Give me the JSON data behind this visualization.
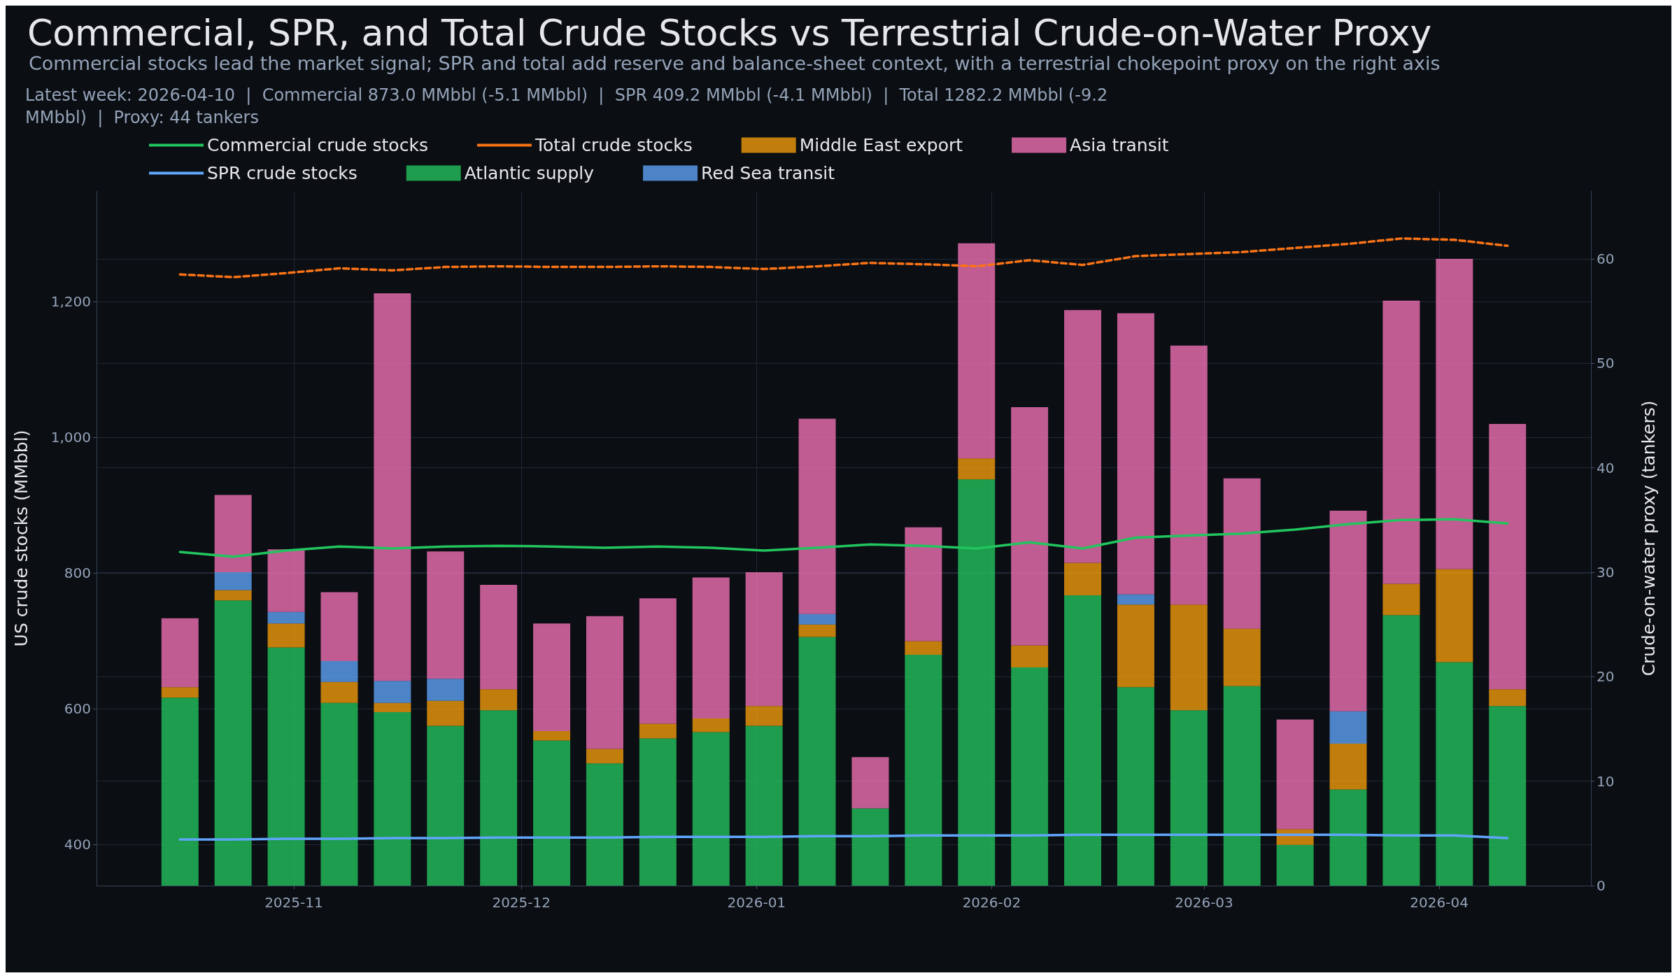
{
  "chart_data": {
    "type": "bar",
    "title": "Commercial, SPR, and Total Crude Stocks vs Terrestrial Crude-on-Water Proxy",
    "subtitle": "Commercial stocks lead the market signal; SPR and total add reserve and balance-sheet context, with a terrestrial chokepoint proxy on the right axis",
    "annotations": [
      "Latest week: 2026-04-10  |  Commercial 873.0 MMbbl (-5.1 MMbbl)  |  SPR 409.2 MMbbl (-4.1 MMbbl)  |  Total 1282.2 MMbbl (-9.2 MMbbl)  |  Proxy: 44 tankers"
    ],
    "ylabel": "US crude stocks (MMbbl)",
    "y2label": "Crude-on-water proxy (tankers)",
    "x": [
      "2025-10-17",
      "2025-10-24",
      "2025-10-31",
      "2025-11-07",
      "2025-11-14",
      "2025-11-21",
      "2025-11-28",
      "2025-12-05",
      "2025-12-12",
      "2025-12-19",
      "2025-12-26",
      "2026-01-02",
      "2026-01-09",
      "2026-01-16",
      "2026-01-23",
      "2026-01-30",
      "2026-02-06",
      "2026-02-13",
      "2026-02-20",
      "2026-02-27",
      "2026-03-06",
      "2026-03-13",
      "2026-03-20",
      "2026-03-27",
      "2026-04-03",
      "2026-04-10"
    ],
    "xlim": [
      "2025-10-06",
      "2026-04-21"
    ],
    "xticks": [
      {
        "value": "2025-11-01",
        "label": "2025-11"
      },
      {
        "value": "2025-12-01",
        "label": "2025-12"
      },
      {
        "value": "2026-01-01",
        "label": "2026-01"
      },
      {
        "value": "2026-02-01",
        "label": "2026-02"
      },
      {
        "value": "2026-03-01",
        "label": "2026-03"
      },
      {
        "value": "2026-04-01",
        "label": "2026-04"
      }
    ],
    "ylim": [
      339,
      1363
    ],
    "yticks": [
      {
        "value": 400,
        "label": "400"
      },
      {
        "value": 600,
        "label": "600"
      },
      {
        "value": 800,
        "label": "800"
      },
      {
        "value": 1000,
        "label": "1,000"
      },
      {
        "value": 1200,
        "label": "1,200"
      }
    ],
    "y2lim": [
      0,
      66.5
    ],
    "y2ticks": [
      0,
      10,
      20,
      30,
      40,
      50,
      60
    ],
    "stacked": true,
    "grid": true,
    "legend": "top left",
    "series": [
      {
        "name": "Commercial crude stocks",
        "type": "line",
        "axis": "y",
        "color": "#22c55e",
        "line_style": "solid",
        "values": [
          831,
          824,
          833,
          839,
          836,
          839,
          840,
          839,
          837,
          839,
          837,
          833,
          837,
          842,
          840,
          836,
          845,
          836,
          852,
          855,
          858,
          864,
          872,
          878,
          879,
          873.0
        ]
      },
      {
        "name": "SPR crude stocks",
        "type": "line",
        "axis": "y",
        "color": "#60a5fa",
        "line_style": "solid",
        "values": [
          407,
          407,
          408,
          408,
          409,
          409,
          410,
          410,
          410,
          411,
          411,
          411,
          412,
          412,
          413,
          413,
          413,
          414,
          414,
          414,
          414,
          414,
          414,
          413,
          413,
          409.2
        ]
      },
      {
        "name": "Total crude stocks",
        "type": "line",
        "axis": "y",
        "color": "#f97316",
        "line_style": "dashed",
        "values": [
          1240,
          1236,
          1242,
          1249,
          1246,
          1251,
          1252,
          1251,
          1251,
          1252,
          1251,
          1248,
          1252,
          1257,
          1255,
          1252,
          1261,
          1254,
          1267,
          1270,
          1273,
          1279,
          1285,
          1293,
          1291,
          1282.2
        ]
      },
      {
        "name": "Atlantic supply",
        "axis": "y2",
        "color": "#22c55e",
        "values": [
          18,
          27.3,
          22.8,
          17.5,
          16.6,
          15.3,
          16.8,
          13.9,
          11.7,
          14.1,
          14.7,
          15.3,
          23.8,
          7.4,
          22.1,
          38.9,
          20.9,
          27.8,
          19,
          16.8,
          19.1,
          3.9,
          9.2,
          25.9,
          21.4,
          17.2
        ]
      },
      {
        "name": "Middle East export",
        "axis": "y2",
        "color": "#f59e0b",
        "values": [
          1,
          1,
          2.3,
          2,
          0.9,
          2.4,
          2,
          0.9,
          1.4,
          1.4,
          1.3,
          1.9,
          1.2,
          0,
          1.3,
          2,
          2.1,
          3.1,
          7.9,
          10.1,
          5.5,
          1.5,
          4.4,
          3,
          8.9,
          1.6
        ]
      },
      {
        "name": "Red Sea transit",
        "axis": "y2",
        "color": "#60a5fa",
        "values": [
          0,
          1.7,
          1.1,
          2,
          2.1,
          2.1,
          0,
          0,
          0,
          0,
          0,
          0,
          1,
          0,
          0,
          0,
          0,
          0,
          1,
          0,
          0,
          0,
          3.1,
          0,
          0,
          0
        ]
      },
      {
        "name": "Asia transit",
        "axis": "y2",
        "color": "#f472b6",
        "values": [
          6.6,
          7.4,
          6,
          6.6,
          37.1,
          12.2,
          10,
          10.3,
          12.7,
          12,
          13.5,
          12.8,
          18.7,
          4.9,
          10.9,
          20.6,
          22.8,
          24.2,
          26.9,
          24.8,
          14.4,
          10.5,
          19.2,
          27.1,
          29.7,
          25.4
        ]
      }
    ]
  }
}
